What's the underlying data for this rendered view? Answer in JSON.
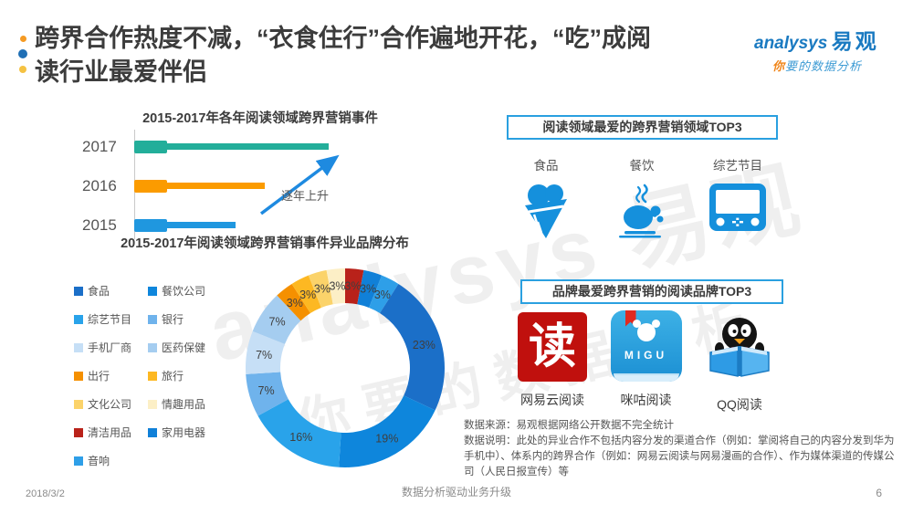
{
  "header": {
    "title_line1": "跨界合作热度不减，“衣食住行”合作遍地开花，“吃”成阅",
    "title_line2": "读行业最爱伴侣",
    "logo": {
      "brand_en": "analysys",
      "brand_cn": "易观",
      "tagline_first": "你",
      "tagline_rest": "要的数据分析"
    }
  },
  "watermark": {
    "line1": "analysys 易观",
    "line2": "你要的数据分析"
  },
  "chart_data": [
    {
      "type": "bar",
      "title": "2015-2017年各年阅读领域跨界营销事件",
      "orientation": "horizontal",
      "categories": [
        "2017",
        "2016",
        "2015"
      ],
      "values_relative": [
        1.0,
        0.67,
        0.52
      ],
      "value_axis_labels_shown": false,
      "bar_colors": [
        "#23ae9a",
        "#fb9b00",
        "#1f97df"
      ],
      "annotation": {
        "text": "逐年上升",
        "color": "#1e8ae0"
      }
    },
    {
      "type": "pie",
      "donut": true,
      "title": "2015-2017年阅读领域跨界营销事件异业品牌分布",
      "start_angle_deg": 0,
      "unit": "%",
      "segments": [
        {
          "label": "清洁用品",
          "value": 3,
          "color": "#b9221a"
        },
        {
          "label": "家用电器",
          "value": 3,
          "color": "#1080d8"
        },
        {
          "label": "音响",
          "value": 3,
          "color": "#2e9fe8"
        },
        {
          "label": "食品",
          "value": 23,
          "color": "#1b6fc8"
        },
        {
          "label": "餐饮公司",
          "value": 19,
          "color": "#0e86dc"
        },
        {
          "label": "综艺节目",
          "value": 16,
          "color": "#29a3ea"
        },
        {
          "label": "银行",
          "value": 7,
          "color": "#6fb3ec"
        },
        {
          "label": "手机厂商",
          "value": 7,
          "color": "#c6dff6"
        },
        {
          "label": "医药保健",
          "value": 7,
          "color": "#a5cdf0"
        },
        {
          "label": "出行",
          "value": 3,
          "color": "#f59000"
        },
        {
          "label": "旅行",
          "value": 3,
          "color": "#fdb822"
        },
        {
          "label": "文化公司",
          "value": 3,
          "color": "#fbd36a"
        },
        {
          "label": "情趣用品",
          "value": 3,
          "color": "#fcefc6"
        }
      ],
      "legend_columns": [
        [
          "食品",
          "综艺节目",
          "手机厂商",
          "出行",
          "文化公司",
          "清洁用品",
          "音响"
        ],
        [
          "餐饮公司",
          "银行",
          "医药保健",
          "旅行",
          "情趣用品",
          "家用电器"
        ]
      ],
      "legend_position": "left"
    }
  ],
  "top_domains": {
    "box_title": "阅读领域最爱的跨界营销领域TOP3",
    "items": [
      {
        "label": "食品",
        "icon": "ice-cream-icon"
      },
      {
        "label": "餐饮",
        "icon": "roast-turkey-icon"
      },
      {
        "label": "综艺节目",
        "icon": "tv-icon"
      }
    ],
    "icon_color": "#1590dc"
  },
  "top_brands": {
    "box_title": "品牌最爱跨界营销的阅读品牌TOP3",
    "items": [
      {
        "label": "网易云阅读",
        "icon": "netease-reading-app-icon",
        "glyph": "读"
      },
      {
        "label": "咪咕阅读",
        "icon": "migu-reading-app-icon",
        "glyph": "MIGU"
      },
      {
        "label": "QQ阅读",
        "icon": "qq-reading-app-icon"
      }
    ]
  },
  "footnotes": {
    "source": "数据来源：易观根据网络公开数据不完全统计",
    "note": "数据说明：此处的异业合作不包括内容分发的渠道合作（例如：掌阅将自己的内容分发到华为手机中）、体系内的跨界合作（例如：网易云阅读与网易漫画的合作）、作为媒体渠道的传媒公司（人民日报宣传）等"
  },
  "footer": {
    "date": "2018/3/2",
    "center": "数据分析驱动业务升级",
    "page": "6"
  }
}
